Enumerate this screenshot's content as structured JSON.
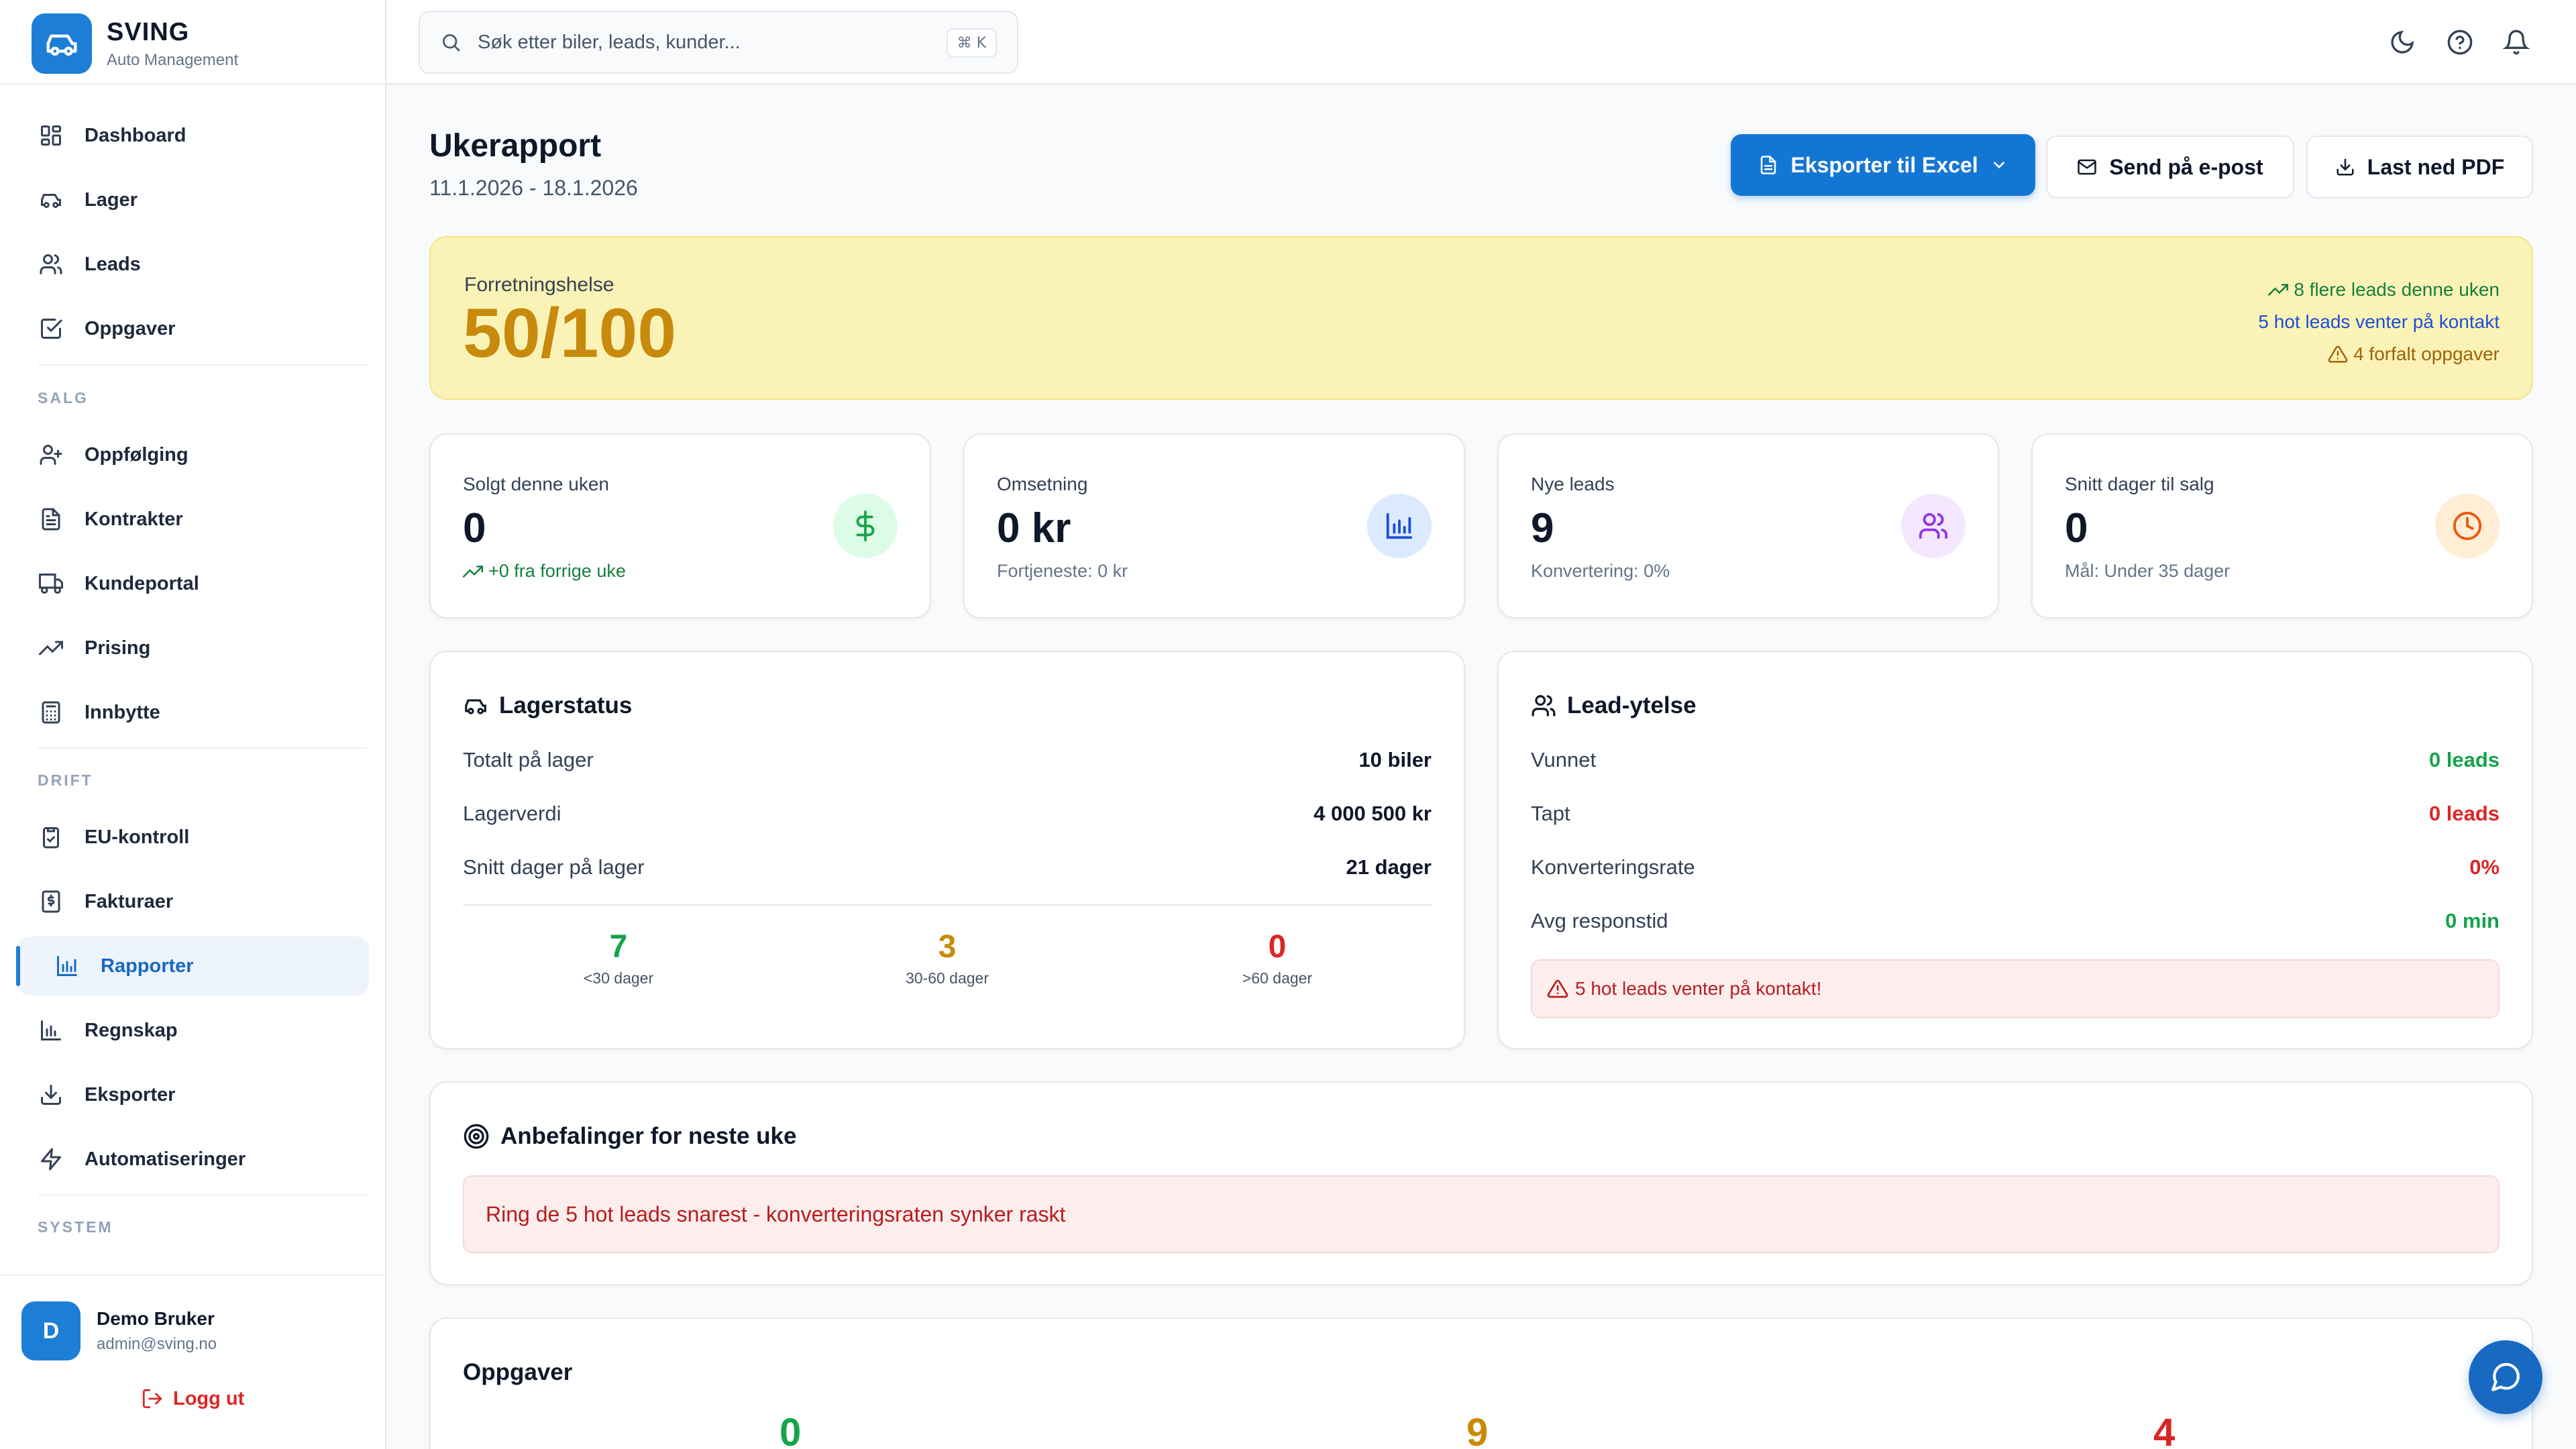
{
  "brand": {
    "name": "SVING",
    "subtitle": "Auto Management"
  },
  "nav": {
    "main": [
      {
        "label": "Dashboard",
        "icon": "dashboard-icon"
      },
      {
        "label": "Lager",
        "icon": "car-icon"
      },
      {
        "label": "Leads",
        "icon": "users-icon"
      },
      {
        "label": "Oppgaver",
        "icon": "checkbox-icon"
      }
    ],
    "salg_label": "SALG",
    "salg": [
      {
        "label": "Oppfølging",
        "icon": "user-plus-icon"
      },
      {
        "label": "Kontrakter",
        "icon": "file-text-icon"
      },
      {
        "label": "Kundeportal",
        "icon": "truck-icon"
      },
      {
        "label": "Prising",
        "icon": "trending-up-icon"
      },
      {
        "label": "Innbytte",
        "icon": "calculator-icon"
      }
    ],
    "drift_label": "DRIFT",
    "drift": [
      {
        "label": "EU-kontroll",
        "icon": "clipboard-check-icon"
      },
      {
        "label": "Fakturaer",
        "icon": "invoice-icon"
      },
      {
        "label": "Rapporter",
        "icon": "bar-chart-icon",
        "active": true
      },
      {
        "label": "Regnskap",
        "icon": "bar-chart-icon"
      },
      {
        "label": "Eksporter",
        "icon": "download-icon"
      },
      {
        "label": "Automatiseringer",
        "icon": "zap-icon"
      }
    ],
    "system_label": "SYSTEM"
  },
  "user": {
    "initial": "D",
    "name": "Demo Bruker",
    "email": "admin@sving.no",
    "logout_label": "Logg ut"
  },
  "search": {
    "placeholder": "Søk etter biler, leads, kunder...",
    "shortcut": "⌘ K"
  },
  "header": {
    "title": "Ukerapport",
    "date_range": "11.1.2026 - 18.1.2026",
    "export_excel": "Eksporter til Excel",
    "send_email": "Send på e-post",
    "download_pdf": "Last ned PDF"
  },
  "health": {
    "label": "Forretningshelse",
    "score": "50/100",
    "notes": {
      "leads_up": "8 flere leads denne uken",
      "hot_leads": "5 hot leads venter på kontakt",
      "overdue": "4 forfalt oppgaver"
    }
  },
  "stats": [
    {
      "label": "Solgt denne uken",
      "value": "0",
      "sub": "+0 fra forrige uke",
      "icon": "dollar-icon",
      "color": "#16a34a"
    },
    {
      "label": "Omsetning",
      "value": "0 kr",
      "sub": "Fortjeneste: 0 kr",
      "icon": "bar-chart-icon",
      "color": "#1d4ed8"
    },
    {
      "label": "Nye leads",
      "value": "9",
      "sub": "Konvertering: 0%",
      "icon": "users-icon",
      "color": "#9333ea"
    },
    {
      "label": "Snitt dager til salg",
      "value": "0",
      "sub": "Mål: Under 35 dager",
      "icon": "clock-icon",
      "color": "#ea580c"
    }
  ],
  "inventory": {
    "title": "Lagerstatus",
    "rows": [
      {
        "label": "Totalt på lager",
        "value": "10 biler"
      },
      {
        "label": "Lagerverdi",
        "value": "4 000 500 kr"
      },
      {
        "label": "Snitt dager på lager",
        "value": "21 dager"
      }
    ],
    "age": [
      {
        "count": "7",
        "label": "<30 dager",
        "color": "#16a34a"
      },
      {
        "count": "3",
        "label": "30-60 dager",
        "color": "#ca8a04"
      },
      {
        "count": "0",
        "label": ">60 dager",
        "color": "#dc2626"
      }
    ]
  },
  "leads": {
    "title": "Lead-ytelse",
    "rows": [
      {
        "label": "Vunnet",
        "value": "0 leads",
        "color": "#16a34a"
      },
      {
        "label": "Tapt",
        "value": "0 leads",
        "color": "#dc2626"
      },
      {
        "label": "Konverteringsrate",
        "value": "0%",
        "color": "#dc2626"
      },
      {
        "label": "Avg responstid",
        "value": "0 min",
        "color": "#16a34a"
      }
    ],
    "alert": "5 hot leads venter på kontakt!"
  },
  "recommendations": {
    "title": "Anbefalinger for neste uke",
    "items": [
      "Ring de 5 hot leads snarest - konverteringsraten synker raskt"
    ]
  },
  "tasks": {
    "title": "Oppgaver",
    "counts": [
      {
        "value": "0",
        "color": "#16a34a"
      },
      {
        "value": "9",
        "color": "#ca8a04"
      },
      {
        "value": "4",
        "color": "#dc2626"
      }
    ]
  }
}
